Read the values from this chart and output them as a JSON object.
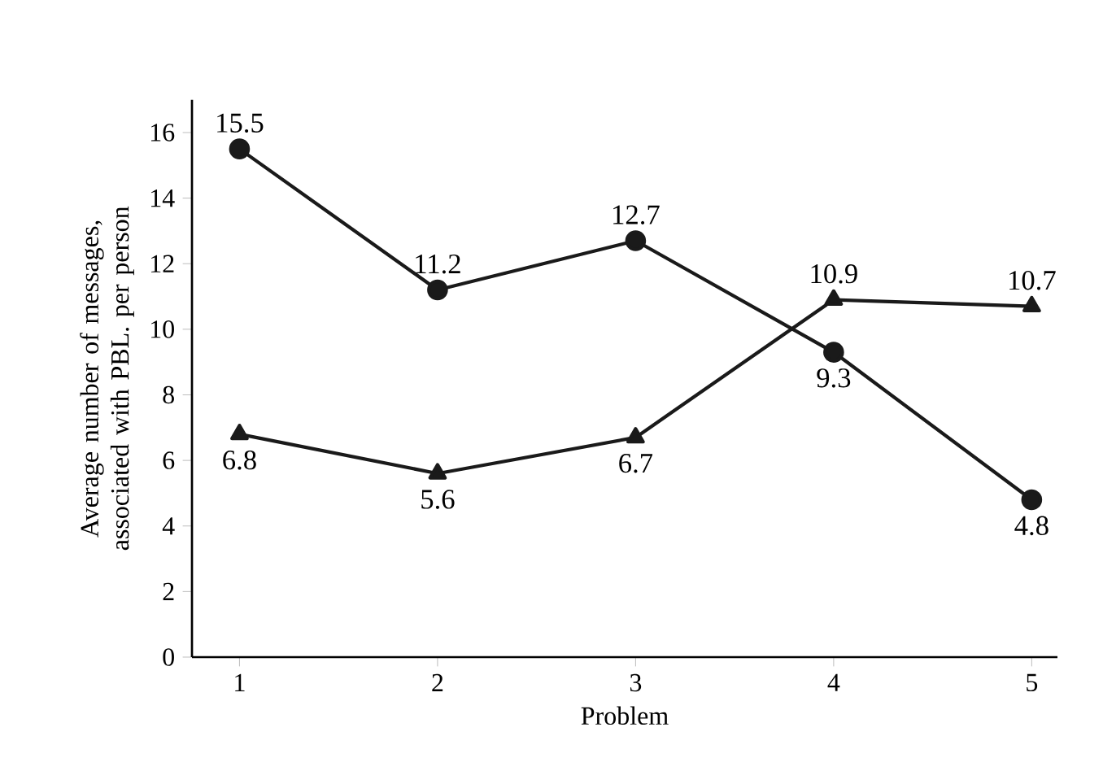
{
  "chart_data": {
    "type": "line",
    "xlabel": "Problem",
    "ylabel": "Average number of messages, associated with PBL. per person",
    "x": [
      1,
      2,
      3,
      4,
      5
    ],
    "series": [
      {
        "color": "#1a1a1a",
        "marker": "circle",
        "values": [
          15.5,
          11.2,
          12.7,
          9.3,
          4.8
        ]
      },
      {
        "color": "#1a1a1a",
        "marker": "triangle",
        "values": [
          6.8,
          5.6,
          6.7,
          10.9,
          10.7
        ]
      }
    ],
    "xlim": [
      0.76,
      5.13
    ],
    "ylim": [
      0,
      17
    ],
    "xticks": [
      1,
      2,
      3,
      4,
      5
    ],
    "yticks": [
      0,
      2,
      4,
      6,
      8,
      10,
      12,
      14,
      16
    ],
    "data_labels": true,
    "line_style": "solid"
  }
}
